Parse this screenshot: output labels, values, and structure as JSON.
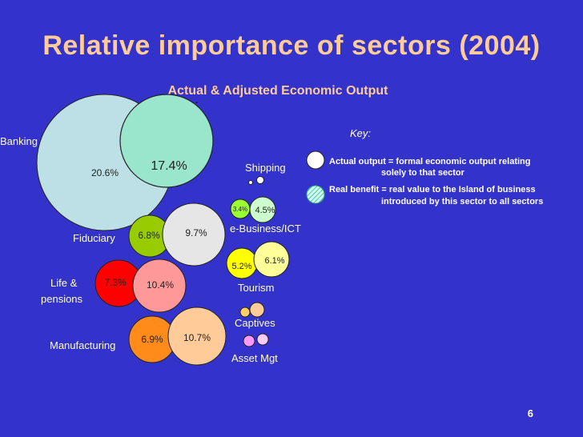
{
  "title": "Relative importance of sectors (2004)",
  "page_number": "6",
  "colors": {
    "background": "#3333cc",
    "title": "#ffcc99",
    "banking": "#bde0e6",
    "banking_adjusted": "#99e6cc",
    "fiduciary": "#99cc00",
    "fiduciary_adjusted": "#e6e6e6",
    "life": "#ff0000",
    "life_adjusted": "#ff9999",
    "manufacturing": "#ff8c1a",
    "manufacturing_adjusted": "#ffcc99",
    "shipping": "#ffffff",
    "ebusiness": "#99ff33",
    "ebusiness_adjusted": "#ccffcc",
    "tourism": "#ffff00",
    "tourism_adjusted": "#ffff99",
    "captives": "#ffcc66",
    "captives_adjusted": "#ffcc99",
    "asset": "#ff99ff",
    "asset_adjusted": "#ffccff"
  },
  "chart_data": {
    "type": "bubble",
    "title": "Actual & Adjusted Economic Output",
    "series": [
      {
        "name": "Actual output",
        "key_label": "Actual output = formal economic output relating solely to that sector"
      },
      {
        "name": "Real benefit",
        "key_label": "Real benefit = real value to the Island of business introduced by this sector to all sectors"
      }
    ],
    "sectors": [
      {
        "name": "Banking",
        "actual": 20.6,
        "adjusted": 17.4,
        "actual_label": "20.6%",
        "adjusted_label": "17.4%"
      },
      {
        "name": "Fiduciary",
        "actual": 6.8,
        "adjusted": 9.7,
        "actual_label": "6.8%",
        "adjusted_label": "9.7%"
      },
      {
        "name": "Life & pensions",
        "actual": 7.3,
        "adjusted": 10.4,
        "actual_label": "7.3%",
        "adjusted_label": "10.4%"
      },
      {
        "name": "Manufacturing",
        "actual": 6.9,
        "adjusted": 10.7,
        "actual_label": "6.9%",
        "adjusted_label": "10.7%"
      },
      {
        "name": "Shipping",
        "actual": null,
        "adjusted": null,
        "actual_label": "",
        "adjusted_label": ""
      },
      {
        "name": "e-Business/ICT",
        "actual": 3.4,
        "adjusted": 4.5,
        "actual_label": "3.4%",
        "adjusted_label": "4.5%"
      },
      {
        "name": "Tourism",
        "actual": 5.2,
        "adjusted": 6.1,
        "actual_label": "5.2%",
        "adjusted_label": "6.1%"
      },
      {
        "name": "Captives",
        "actual": null,
        "adjusted": null,
        "actual_label": "",
        "adjusted_label": ""
      },
      {
        "name": "Asset Mgt",
        "actual": null,
        "adjusted": null,
        "actual_label": "",
        "adjusted_label": ""
      }
    ],
    "sector_labels": {
      "banking": "Banking",
      "fiduciary": "Fiduciary",
      "life_line1": "Life &",
      "life_line2": "pensions",
      "manufacturing": "Manufacturing",
      "shipping": "Shipping",
      "ebusiness": "e-Business/ICT",
      "tourism": "Tourism",
      "captives": "Captives",
      "asset": "Asset Mgt"
    },
    "key": {
      "heading": "Key:",
      "actual_line1": "Actual output = formal economic output relating",
      "actual_line2": "solely to that sector",
      "real_line1": "Real benefit = real value to the Island of business",
      "real_line2": "introduced by this sector to all sectors"
    }
  }
}
